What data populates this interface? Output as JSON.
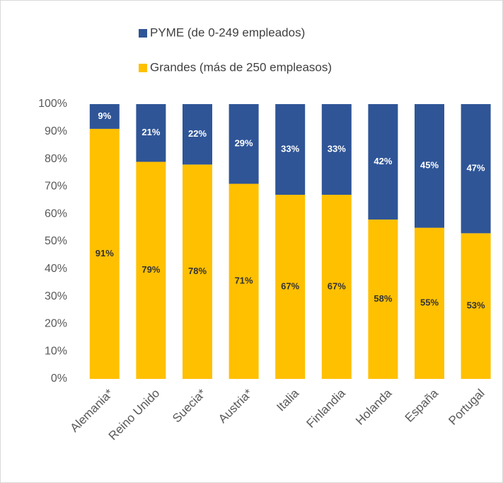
{
  "chart_data": {
    "type": "stacked_bar",
    "categories": [
      "Alemania*",
      "Reino Unido",
      "Suecia*",
      "Austria*",
      "Italia",
      "Finlandia",
      "Holanda",
      "España",
      "Portugal"
    ],
    "series": [
      {
        "name": "PYME (de 0-249 empleados)",
        "color": "#2f5597",
        "values": [
          9,
          21,
          22,
          29,
          33,
          33,
          42,
          45,
          47
        ],
        "value_labels": [
          "9%",
          "21%",
          "22%",
          "29%",
          "33%",
          "33%",
          "42%",
          "45%",
          "47%"
        ]
      },
      {
        "name": "Grandes (más de 250 empleasos)",
        "color": "#ffc000",
        "values": [
          91,
          79,
          78,
          71,
          67,
          67,
          58,
          55,
          53
        ],
        "value_labels": [
          "91%",
          "79%",
          "78%",
          "71%",
          "67%",
          "67%",
          "58%",
          "55%",
          "53%"
        ]
      }
    ],
    "ylim": [
      0,
      100
    ],
    "yticks": [
      {
        "value": 0,
        "label": "0%"
      },
      {
        "value": 10,
        "label": "10%"
      },
      {
        "value": 20,
        "label": "20%"
      },
      {
        "value": 30,
        "label": "30%"
      },
      {
        "value": 40,
        "label": "40%"
      },
      {
        "value": 50,
        "label": "50%"
      },
      {
        "value": 60,
        "label": "60%"
      },
      {
        "value": 70,
        "label": "70%"
      },
      {
        "value": 80,
        "label": "80%"
      },
      {
        "value": 90,
        "label": "90%"
      },
      {
        "value": 100,
        "label": "100%"
      }
    ],
    "legend": "top"
  }
}
